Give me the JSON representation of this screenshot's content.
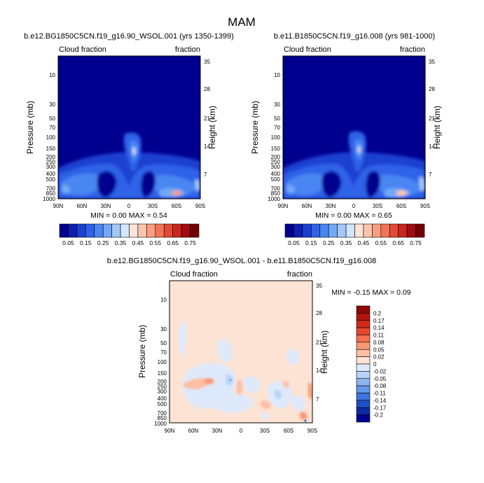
{
  "figure": {
    "title": "MAM"
  },
  "chart_data": [
    {
      "type": "heatmap",
      "panel": "top-left",
      "title": "b.e12.BG1850C5CN.f19_g16.90_WSOL.001 (yrs 1350-1399)",
      "left_label": "Cloud fraction",
      "right_label": "fraction",
      "xlabel": "",
      "ylabel": "Pressure (mb)",
      "ylabel_right": "Height (km)",
      "x_ticks": [
        "90N",
        "60N",
        "30N",
        "0",
        "30S",
        "60S",
        "90S"
      ],
      "y_ticks": [
        "10",
        "30",
        "50",
        "70",
        "100",
        "150",
        "200",
        "250",
        "300",
        "400",
        "500",
        "700",
        "850",
        "1000"
      ],
      "y_right_ticks": [
        "35",
        "28",
        "21",
        "14",
        "7"
      ],
      "stats": "MIN =  0.00  MAX =  0.54",
      "min": 0.0,
      "max": 0.54,
      "colorbar": {
        "labels": [
          "0.05",
          "0.15",
          "0.25",
          "0.35",
          "0.45",
          "0.55",
          "0.65",
          "0.75"
        ],
        "colors": [
          "#00008f",
          "#0b1fb1",
          "#1d3fd0",
          "#2f62e8",
          "#4a86f2",
          "#73a8f6",
          "#a2c8fa",
          "#d2e6fd",
          "#fde5d8",
          "#fcc5ad",
          "#fa9e80",
          "#f27358",
          "#e34a35",
          "#c9271d",
          "#a20b0f",
          "#750000"
        ]
      }
    },
    {
      "type": "heatmap",
      "panel": "top-right",
      "title": "b.e11.B1850C5CN.f19_g16.008 (yrs 981-1000)",
      "left_label": "Cloud fraction",
      "right_label": "fraction",
      "xlabel": "",
      "ylabel": "Pressure (mb)",
      "ylabel_right": "Height (km)",
      "x_ticks": [
        "90N",
        "60N",
        "30N",
        "0",
        "30S",
        "60S",
        "90S"
      ],
      "y_ticks": [
        "10",
        "30",
        "50",
        "70",
        "100",
        "150",
        "200",
        "250",
        "300",
        "400",
        "500",
        "700",
        "850",
        "1000"
      ],
      "y_right_ticks": [
        "35",
        "28",
        "21",
        "14",
        "7"
      ],
      "stats": "MIN =  0.00  MAX =  0.65",
      "min": 0.0,
      "max": 0.65,
      "colorbar": {
        "labels": [
          "0.05",
          "0.15",
          "0.25",
          "0.35",
          "0.45",
          "0.55",
          "0.65",
          "0.75"
        ],
        "colors": [
          "#00008f",
          "#0b1fb1",
          "#1d3fd0",
          "#2f62e8",
          "#4a86f2",
          "#73a8f6",
          "#a2c8fa",
          "#d2e6fd",
          "#fde5d8",
          "#fcc5ad",
          "#fa9e80",
          "#f27358",
          "#e34a35",
          "#c9271d",
          "#a20b0f",
          "#750000"
        ]
      }
    },
    {
      "type": "heatmap",
      "panel": "bottom",
      "title": "b.e12.BG1850C5CN.f19_g16.90_WSOL.001 - b.e11.B1850C5CN.f19_g16.008",
      "left_label": "Cloud fraction",
      "right_label": "fraction",
      "xlabel": "",
      "ylabel": "Pressure (mb)",
      "ylabel_right": "Height (km)",
      "x_ticks": [
        "90N",
        "60N",
        "30N",
        "0",
        "30S",
        "60S",
        "90S"
      ],
      "y_ticks": [
        "10",
        "30",
        "50",
        "70",
        "100",
        "150",
        "200",
        "250",
        "300",
        "400",
        "500",
        "700",
        "850",
        "1000"
      ],
      "y_right_ticks": [
        "35",
        "28",
        "21",
        "14",
        "7"
      ],
      "stats": "MIN =  -0.15  MAX =   0.09",
      "min": -0.15,
      "max": 0.09,
      "colorbar": {
        "labels": [
          "0.2",
          "0.17",
          "0.14",
          "0.11",
          "0.08",
          "0.05",
          "0.02",
          "0",
          "-0.02",
          "-0.05",
          "-0.08",
          "-0.11",
          "-0.14",
          "-0.17",
          "-0.2"
        ],
        "colors": [
          "#8a0a06",
          "#b3150c",
          "#d2281a",
          "#e8472f",
          "#f4704f",
          "#f99877",
          "#fcbfa3",
          "#fde3d3",
          "#deeafb",
          "#b9d3f7",
          "#8fb5f1",
          "#6496ea",
          "#3d73dc",
          "#1f4fc6",
          "#0b2aa5",
          "#00008f"
        ]
      }
    }
  ]
}
